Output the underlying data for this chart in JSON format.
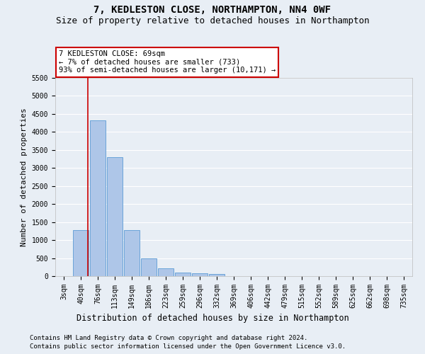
{
  "title1": "7, KEDLESTON CLOSE, NORTHAMPTON, NN4 0WF",
  "title2": "Size of property relative to detached houses in Northampton",
  "xlabel": "Distribution of detached houses by size in Northampton",
  "ylabel": "Number of detached properties",
  "bar_labels": [
    "3sqm",
    "40sqm",
    "76sqm",
    "113sqm",
    "149sqm",
    "186sqm",
    "223sqm",
    "259sqm",
    "296sqm",
    "332sqm",
    "369sqm",
    "406sqm",
    "442sqm",
    "479sqm",
    "515sqm",
    "552sqm",
    "589sqm",
    "625sqm",
    "662sqm",
    "698sqm",
    "735sqm"
  ],
  "bar_values": [
    0,
    1270,
    4330,
    3300,
    1280,
    490,
    220,
    90,
    70,
    55,
    0,
    0,
    0,
    0,
    0,
    0,
    0,
    0,
    0,
    0,
    0
  ],
  "bar_color": "#aec6e8",
  "bar_edge_color": "#5b9bd5",
  "annotation_line1": "7 KEDLESTON CLOSE: 69sqm",
  "annotation_line2": "← 7% of detached houses are smaller (733)",
  "annotation_line3": "93% of semi-detached houses are larger (10,171) →",
  "annotation_box_color": "#ffffff",
  "annotation_box_edge_color": "#cc0000",
  "vline_x": 1.42,
  "vline_color": "#cc0000",
  "ylim": [
    0,
    5500
  ],
  "yticks": [
    0,
    500,
    1000,
    1500,
    2000,
    2500,
    3000,
    3500,
    4000,
    4500,
    5000,
    5500
  ],
  "background_color": "#e8eef5",
  "plot_bg_color": "#e8eef5",
  "grid_color": "#ffffff",
  "footnote1": "Contains HM Land Registry data © Crown copyright and database right 2024.",
  "footnote2": "Contains public sector information licensed under the Open Government Licence v3.0.",
  "title1_fontsize": 10,
  "title2_fontsize": 9,
  "xlabel_fontsize": 8.5,
  "ylabel_fontsize": 8,
  "annot_fontsize": 7.5,
  "tick_fontsize": 7,
  "footnote_fontsize": 6.5
}
